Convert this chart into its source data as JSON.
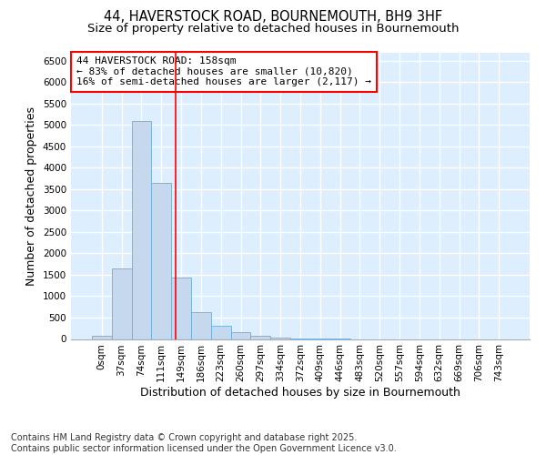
{
  "title_line1": "44, HAVERSTOCK ROAD, BOURNEMOUTH, BH9 3HF",
  "title_line2": "Size of property relative to detached houses in Bournemouth",
  "xlabel": "Distribution of detached houses by size in Bournemouth",
  "ylabel": "Number of detached properties",
  "bar_color": "#c5d8ed",
  "bar_edge_color": "#6baed6",
  "background_color": "#ddeeff",
  "grid_color": "#ffffff",
  "fig_background": "#ffffff",
  "categories": [
    "0sqm",
    "37sqm",
    "74sqm",
    "111sqm",
    "149sqm",
    "186sqm",
    "223sqm",
    "260sqm",
    "297sqm",
    "334sqm",
    "372sqm",
    "409sqm",
    "446sqm",
    "483sqm",
    "520sqm",
    "557sqm",
    "594sqm",
    "632sqm",
    "669sqm",
    "706sqm",
    "743sqm"
  ],
  "values": [
    70,
    1650,
    5100,
    3650,
    1430,
    620,
    310,
    155,
    75,
    40,
    15,
    5,
    2,
    0,
    0,
    0,
    0,
    0,
    0,
    0,
    0
  ],
  "ylim_max": 6700,
  "yticks": [
    0,
    500,
    1000,
    1500,
    2000,
    2500,
    3000,
    3500,
    4000,
    4500,
    5000,
    5500,
    6000,
    6500
  ],
  "property_label": "44 HAVERSTOCK ROAD: 158sqm",
  "annotation_line1": "← 83% of detached houses are smaller (10,820)",
  "annotation_line2": "16% of semi-detached houses are larger (2,117) →",
  "vline_pos": 3.72,
  "footer_line1": "Contains HM Land Registry data © Crown copyright and database right 2025.",
  "footer_line2": "Contains public sector information licensed under the Open Government Licence v3.0.",
  "title_fontsize": 10.5,
  "subtitle_fontsize": 9.5,
  "axis_label_fontsize": 9,
  "tick_fontsize": 7.5,
  "annotation_fontsize": 8,
  "footer_fontsize": 7
}
